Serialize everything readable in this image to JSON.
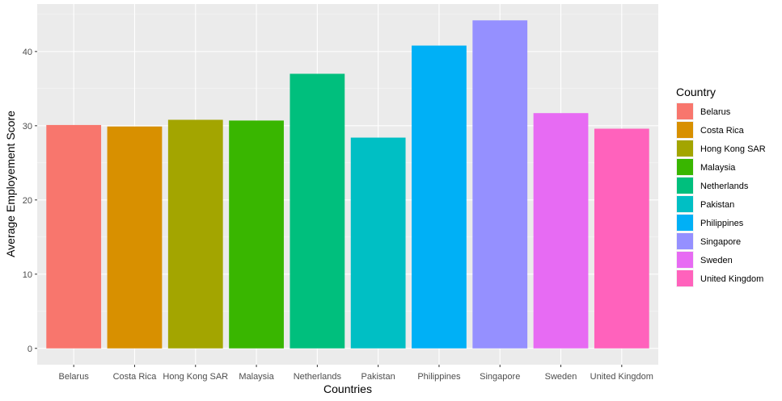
{
  "chart_data": {
    "type": "bar",
    "xlabel": "Countries",
    "ylabel": "Average Employement Score",
    "categories": [
      "Belarus",
      "Costa Rica",
      "Hong Kong SAR",
      "Malaysia",
      "Netherlands",
      "Pakistan",
      "Philippines",
      "Singapore",
      "Sweden",
      "United Kingdom"
    ],
    "values": [
      30.1,
      29.9,
      30.8,
      30.7,
      37.0,
      28.4,
      40.8,
      44.2,
      31.7,
      29.6
    ],
    "colors": [
      "#F8766D",
      "#D89000",
      "#A3A500",
      "#39B600",
      "#00BF7D",
      "#00BFC4",
      "#00B0F6",
      "#9590FF",
      "#E76BF3",
      "#FF62BC"
    ],
    "yticks": [
      0,
      10,
      20,
      30,
      40
    ],
    "ylim": [
      -2.2,
      46.4
    ],
    "grid": true,
    "background": "#EBEBEB",
    "legend": {
      "title": "Country",
      "placement": "right",
      "entries": [
        "Belarus",
        "Costa Rica",
        "Hong Kong SAR",
        "Malaysia",
        "Netherlands",
        "Pakistan",
        "Philippines",
        "Singapore",
        "Sweden",
        "United Kingdom"
      ]
    }
  }
}
